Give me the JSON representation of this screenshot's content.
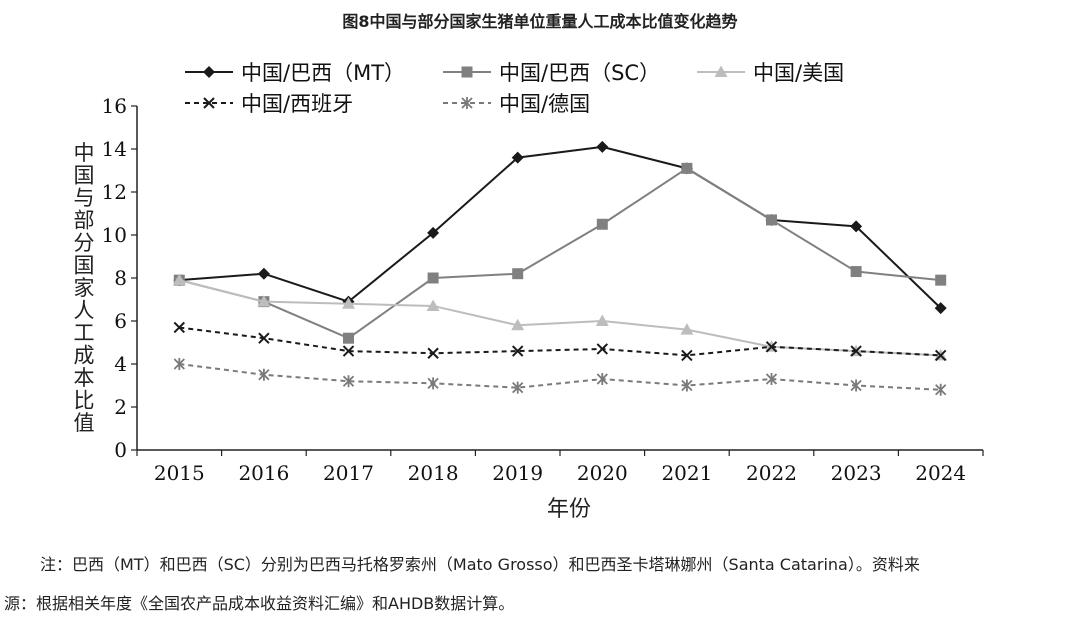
{
  "chart_data": {
    "type": "line",
    "title": "图8中国与部分国家生猪单位重量人工成本比值变化趋势",
    "xlabel": "年份",
    "ylabel": "中国与部分国家人工成本比值",
    "ylim": [
      0,
      16
    ],
    "yticks": [
      0,
      2,
      4,
      6,
      8,
      10,
      12,
      14,
      16
    ],
    "categories": [
      "2015",
      "2016",
      "2017",
      "2018",
      "2019",
      "2020",
      "2021",
      "2022",
      "2023",
      "2024"
    ],
    "series": [
      {
        "name": "中国/巴西（MT）",
        "color": "#1a1a1a",
        "dash": "solid",
        "marker": "diamond",
        "values": [
          7.9,
          8.2,
          6.9,
          10.1,
          13.6,
          14.1,
          13.1,
          10.7,
          10.4,
          6.6
        ]
      },
      {
        "name": "中国/巴西（SC）",
        "color": "#808080",
        "dash": "solid",
        "marker": "square",
        "values": [
          7.9,
          6.9,
          5.2,
          8.0,
          8.2,
          10.5,
          13.1,
          10.7,
          8.3,
          7.9
        ]
      },
      {
        "name": "中国/美国",
        "color": "#bdbdbd",
        "dash": "solid",
        "marker": "triangle",
        "values": [
          7.9,
          6.9,
          6.8,
          6.7,
          5.8,
          6.0,
          5.6,
          4.8,
          4.6,
          4.4
        ]
      },
      {
        "name": "中国/西班牙",
        "color": "#1a1a1a",
        "dash": "dashed",
        "marker": "x",
        "values": [
          5.7,
          5.2,
          4.6,
          4.5,
          4.6,
          4.7,
          4.4,
          4.8,
          4.6,
          4.4
        ]
      },
      {
        "name": "中国/德国",
        "color": "#7a7a7a",
        "dash": "dashed",
        "marker": "star",
        "values": [
          4.0,
          3.5,
          3.2,
          3.1,
          2.9,
          3.3,
          3.0,
          3.3,
          3.0,
          2.8
        ]
      }
    ],
    "legend": "top"
  },
  "notes": {
    "line1": "注：巴西（MT）和巴西（SC）分别为巴西马托格罗索州（Mato Grosso）和巴西圣卡塔琳娜州（Santa Catarina）。资料来",
    "line2": "源：根据相关年度《全国农产品成本收益资料汇编》和AHDB数据计算。"
  }
}
